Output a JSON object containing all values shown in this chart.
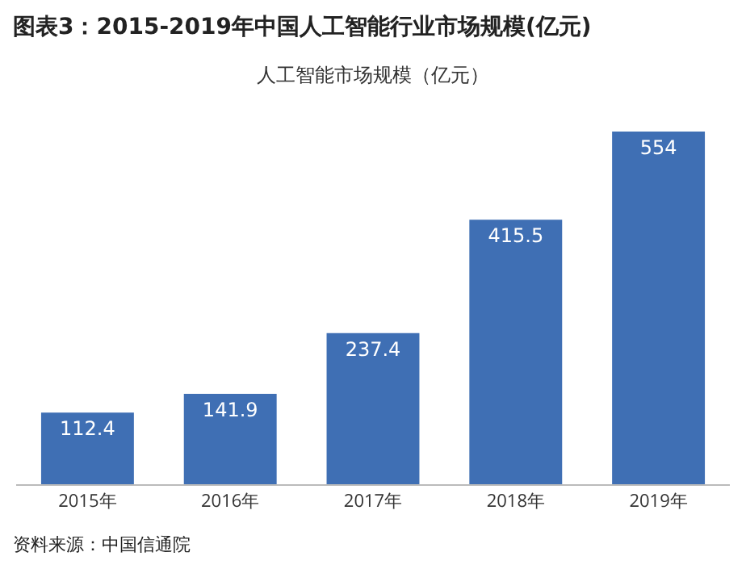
{
  "chart_data": {
    "type": "bar",
    "title": "图表3：2015-2019年中国人工智能行业市场规模(亿元)",
    "subtitle": "人工智能市场规模（亿元）",
    "categories": [
      "2015年",
      "2016年",
      "2017年",
      "2018年",
      "2019年"
    ],
    "values": [
      112.4,
      141.9,
      237.4,
      415.5,
      554
    ],
    "color": "#3f6fb4",
    "data_labels": true,
    "annotations": [
      "资料来源：中国信通院"
    ]
  }
}
